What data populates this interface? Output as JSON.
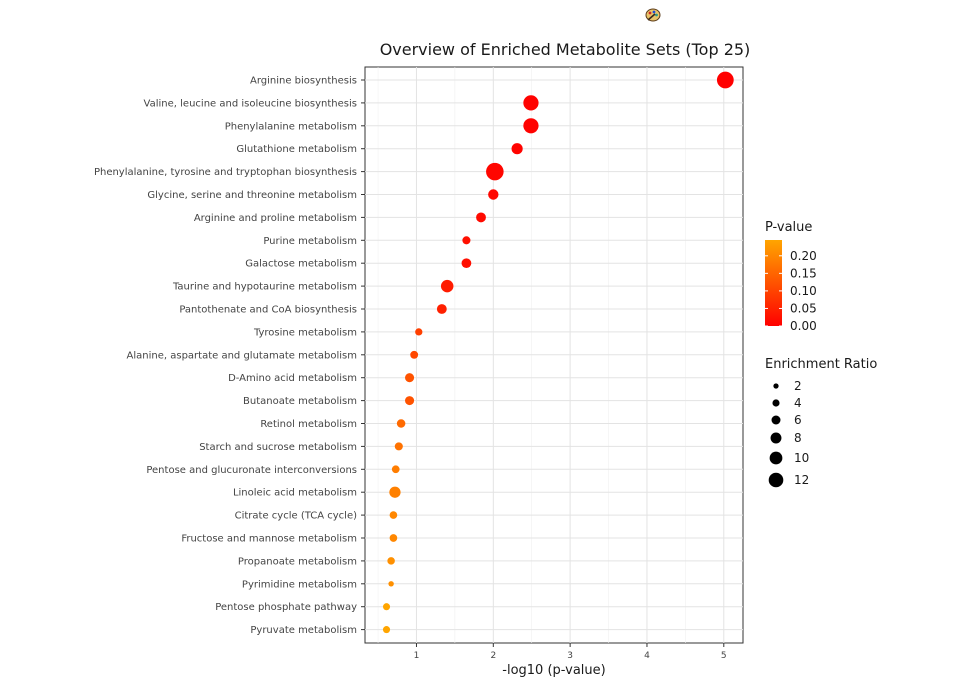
{
  "chart_data": {
    "type": "scatter",
    "title": "Overview of Enriched Metabolite Sets (Top 25)",
    "xlabel": "-log10 (p-value)",
    "ylabel": "",
    "xlim": [
      0.33,
      5.25
    ],
    "x_ticks": [
      1,
      2,
      3,
      4,
      5
    ],
    "grid": true,
    "legend_position": "right",
    "categories": [
      "Arginine biosynthesis",
      "Valine, leucine and isoleucine biosynthesis",
      "Phenylalanine metabolism",
      "Glutathione metabolism",
      "Phenylalanine, tyrosine and tryptophan biosynthesis",
      "Glycine, serine and threonine metabolism",
      "Arginine and proline metabolism",
      "Purine metabolism",
      "Galactose metabolism",
      "Taurine and hypotaurine metabolism",
      "Pantothenate and CoA biosynthesis",
      "Tyrosine metabolism",
      "Alanine, aspartate and glutamate metabolism",
      "D-Amino acid metabolism",
      "Butanoate metabolism",
      "Retinol metabolism",
      "Starch and sucrose metabolism",
      "Pentose and glucuronate interconversions",
      "Linoleic acid metabolism",
      "Citrate cycle (TCA cycle)",
      "Fructose and mannose metabolism",
      "Propanoate metabolism",
      "Pyrimidine metabolism",
      "Pentose phosphate pathway",
      "Pyruvate metabolism"
    ],
    "neg_log10_p": [
      5.02,
      2.49,
      2.49,
      2.31,
      2.02,
      2.0,
      1.84,
      1.65,
      1.65,
      1.4,
      1.33,
      1.03,
      0.97,
      0.91,
      0.91,
      0.8,
      0.77,
      0.73,
      0.72,
      0.7,
      0.7,
      0.67,
      0.67,
      0.61,
      0.61
    ],
    "p_value": [
      1e-05,
      0.0032,
      0.0032,
      0.0049,
      0.0095,
      0.01,
      0.0145,
      0.0224,
      0.0224,
      0.0398,
      0.0468,
      0.093,
      0.107,
      0.123,
      0.123,
      0.158,
      0.17,
      0.186,
      0.19,
      0.2,
      0.2,
      0.214,
      0.214,
      0.245,
      0.245
    ],
    "enrichment_ratio": [
      11.6,
      10.2,
      10.2,
      6.5,
      12.3,
      5.8,
      5.3,
      3.7,
      5.2,
      7.7,
      5.3,
      3.0,
      3.5,
      4.6,
      4.6,
      4.1,
      3.7,
      3.4,
      6.6,
      3.3,
      3.3,
      3.2,
      1.3,
      2.8,
      2.8
    ],
    "legend_pvalue": {
      "title": "P-value",
      "ticks": [
        "0.20",
        "0.15",
        "0.10",
        "0.05",
        "0.00"
      ],
      "tick_values": [
        0.2,
        0.15,
        0.1,
        0.05,
        0.0
      ],
      "range": [
        0.0,
        0.245
      ],
      "color_low": "#FF0000",
      "color_high": "#FFA500"
    },
    "legend_size": {
      "title": "Enrichment Ratio",
      "values": [
        2,
        4,
        6,
        8,
        10,
        12
      ],
      "labels": [
        "2",
        "4",
        "6",
        "8",
        "10",
        "12"
      ]
    }
  },
  "decor": {
    "icon": "palette-icon"
  }
}
